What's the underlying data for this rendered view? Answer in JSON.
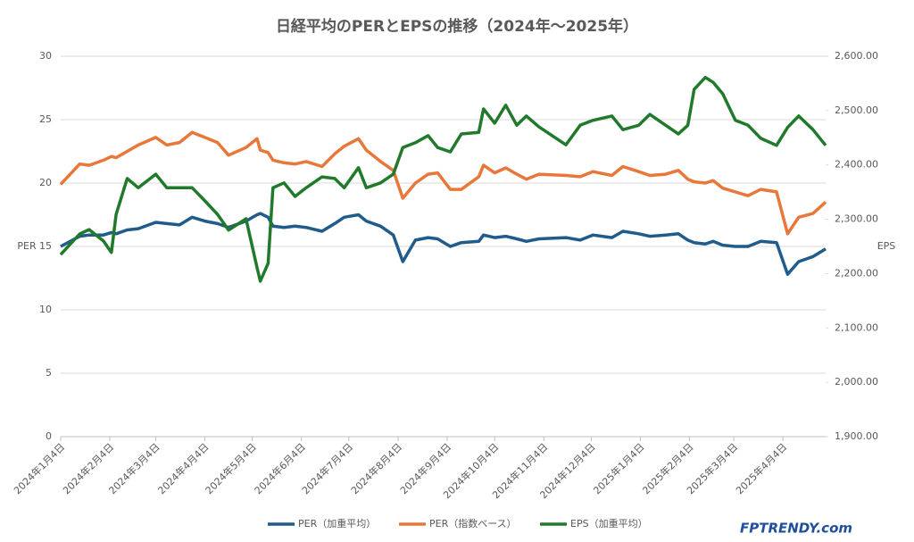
{
  "chart_data": {
    "type": "line",
    "title": "日経平均のPERとEPSの推移（2024年～2025年）",
    "y_label": "PER",
    "y2_label": "EPS",
    "watermark": "FPTRENDY.com",
    "legend": "bottom",
    "grid": true,
    "xlim": [
      "2024-01-04",
      "2025-05-01"
    ],
    "xticks": [
      {
        "value": "2024-01-04",
        "label": "2024年1月4日"
      },
      {
        "value": "2024-02-04",
        "label": "2024年2月4日"
      },
      {
        "value": "2024-03-04",
        "label": "2024年3月4日"
      },
      {
        "value": "2024-04-04",
        "label": "2024年4月4日"
      },
      {
        "value": "2024-05-04",
        "label": "2024年5月4日"
      },
      {
        "value": "2024-06-04",
        "label": "2024年6月4日"
      },
      {
        "value": "2024-07-04",
        "label": "2024年7月4日"
      },
      {
        "value": "2024-08-04",
        "label": "2024年8月4日"
      },
      {
        "value": "2024-09-04",
        "label": "2024年9月4日"
      },
      {
        "value": "2024-10-04",
        "label": "2024年10月4日"
      },
      {
        "value": "2024-11-04",
        "label": "2024年11月4日"
      },
      {
        "value": "2024-12-04",
        "label": "2024年12月4日"
      },
      {
        "value": "2025-01-04",
        "label": "2025年1月4日"
      },
      {
        "value": "2025-02-04",
        "label": "2025年2月4日"
      },
      {
        "value": "2025-03-04",
        "label": "2025年3月4日"
      },
      {
        "value": "2025-04-04",
        "label": "2025年4月4日"
      }
    ],
    "ylim": [
      0,
      30
    ],
    "yticks": [
      0,
      5,
      10,
      15,
      20,
      25,
      30
    ],
    "y2lim": [
      1900,
      2600
    ],
    "y2ticks": [
      {
        "value": 1900,
        "label": "1,900.00"
      },
      {
        "value": 2000,
        "label": "2,000.00"
      },
      {
        "value": 2100,
        "label": "2,100.00"
      },
      {
        "value": 2200,
        "label": "2,200.00"
      },
      {
        "value": 2300,
        "label": "2,300.00"
      },
      {
        "value": 2400,
        "label": "2,400.00"
      },
      {
        "value": 2500,
        "label": "2,500.00"
      },
      {
        "value": 2600,
        "label": "2,600.00"
      }
    ],
    "x": [
      "2024-01-04",
      "2024-01-16",
      "2024-01-22",
      "2024-01-31",
      "2024-02-05",
      "2024-02-08",
      "2024-02-15",
      "2024-02-22",
      "2024-03-04",
      "2024-03-11",
      "2024-03-19",
      "2024-03-27",
      "2024-04-04",
      "2024-04-12",
      "2024-04-19",
      "2024-04-30",
      "2024-05-07",
      "2024-05-09",
      "2024-05-14",
      "2024-05-17",
      "2024-05-24",
      "2024-05-31",
      "2024-06-07",
      "2024-06-17",
      "2024-06-25",
      "2024-07-01",
      "2024-07-10",
      "2024-07-15",
      "2024-07-24",
      "2024-08-01",
      "2024-08-07",
      "2024-08-15",
      "2024-08-23",
      "2024-08-29",
      "2024-09-06",
      "2024-09-13",
      "2024-09-24",
      "2024-09-27",
      "2024-10-04",
      "2024-10-11",
      "2024-10-18",
      "2024-10-24",
      "2024-11-01",
      "2024-11-18",
      "2024-11-27",
      "2024-12-05",
      "2024-12-17",
      "2024-12-24",
      "2025-01-03",
      "2025-01-10",
      "2025-01-20",
      "2025-01-28",
      "2025-02-03",
      "2025-02-07",
      "2025-02-14",
      "2025-02-19",
      "2025-02-25",
      "2025-03-05",
      "2025-03-13",
      "2025-03-21",
      "2025-03-31",
      "2025-04-07",
      "2025-04-14",
      "2025-04-23",
      "2025-05-01"
    ],
    "series": [
      {
        "name": "PER（加重平均）",
        "color": "#1f5c8b",
        "axis": "y",
        "values": [
          15.0,
          15.8,
          15.9,
          15.9,
          16.1,
          16.0,
          16.3,
          16.4,
          16.9,
          16.8,
          16.7,
          17.3,
          17.0,
          16.8,
          16.5,
          17.0,
          17.5,
          17.6,
          17.3,
          16.6,
          16.5,
          16.6,
          16.5,
          16.2,
          16.8,
          17.3,
          17.5,
          17.0,
          16.6,
          15.9,
          13.8,
          15.5,
          15.7,
          15.6,
          15.0,
          15.3,
          15.4,
          15.9,
          15.7,
          15.8,
          15.6,
          15.4,
          15.6,
          15.7,
          15.5,
          15.9,
          15.7,
          16.2,
          16.0,
          15.8,
          15.9,
          16.0,
          15.5,
          15.3,
          15.2,
          15.4,
          15.1,
          15.0,
          15.0,
          15.4,
          15.3,
          12.8,
          13.8,
          14.2,
          14.8
        ]
      },
      {
        "name": "PER（指数ベース）",
        "color": "#e8773a",
        "axis": "y",
        "values": [
          19.9,
          21.5,
          21.4,
          21.8,
          22.1,
          22.0,
          22.5,
          23.0,
          23.6,
          23.0,
          23.2,
          24.0,
          23.6,
          23.2,
          22.2,
          22.8,
          23.5,
          22.6,
          22.4,
          21.8,
          21.6,
          21.5,
          21.7,
          21.3,
          22.3,
          22.9,
          23.5,
          22.6,
          21.7,
          21.0,
          18.8,
          20.0,
          20.7,
          20.8,
          19.5,
          19.5,
          20.5,
          21.4,
          20.8,
          21.2,
          20.7,
          20.3,
          20.7,
          20.6,
          20.5,
          20.9,
          20.6,
          21.3,
          20.9,
          20.6,
          20.7,
          21.0,
          20.3,
          20.1,
          20.0,
          20.2,
          19.6,
          19.3,
          19.0,
          19.5,
          19.3,
          16.0,
          17.3,
          17.6,
          18.5
        ]
      },
      {
        "name": "EPS（加重平均）",
        "color": "#217a2c",
        "axis": "y2",
        "values": [
          2235,
          2273,
          2281,
          2260,
          2239,
          2309,
          2375,
          2358,
          2383,
          2358,
          2358,
          2358,
          2334,
          2309,
          2280,
          2301,
          2211,
          2186,
          2219,
          2358,
          2367,
          2342,
          2358,
          2378,
          2375,
          2358,
          2395,
          2358,
          2367,
          2383,
          2432,
          2441,
          2454,
          2432,
          2424,
          2457,
          2460,
          2503,
          2477,
          2510,
          2473,
          2490,
          2470,
          2437,
          2473,
          2482,
          2490,
          2465,
          2473,
          2493,
          2473,
          2457,
          2473,
          2539,
          2561,
          2552,
          2531,
          2482,
          2473,
          2449,
          2436,
          2469,
          2490,
          2465,
          2436
        ]
      }
    ]
  }
}
